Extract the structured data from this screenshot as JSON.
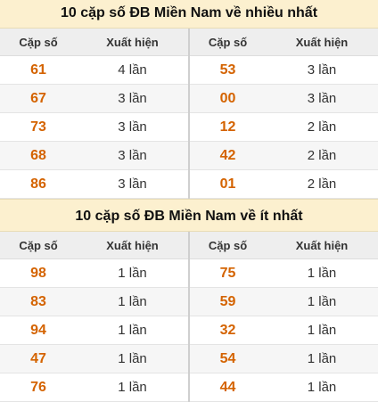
{
  "top": {
    "title": "10 cặp số ĐB Miền Nam về nhiều nhất",
    "headers": [
      "Cặp số",
      "Xuất hiện",
      "Cặp số",
      "Xuất hiện"
    ],
    "rows": [
      {
        "a": "61",
        "a_count": "4 lần",
        "b": "53",
        "b_count": "3 lần"
      },
      {
        "a": "67",
        "a_count": "3 lần",
        "b": "00",
        "b_count": "3 lần"
      },
      {
        "a": "73",
        "a_count": "3 lần",
        "b": "12",
        "b_count": "2 lần"
      },
      {
        "a": "68",
        "a_count": "3 lần",
        "b": "42",
        "b_count": "2 lần"
      },
      {
        "a": "86",
        "a_count": "3 lần",
        "b": "01",
        "b_count": "2 lần"
      }
    ]
  },
  "bottom": {
    "title": "10 cặp số ĐB Miền Nam về ít nhất",
    "headers": [
      "Cặp số",
      "Xuất hiện",
      "Cặp số",
      "Xuất hiện"
    ],
    "rows": [
      {
        "a": "98",
        "a_count": "1 lần",
        "b": "75",
        "b_count": "1 lần"
      },
      {
        "a": "83",
        "a_count": "1 lần",
        "b": "59",
        "b_count": "1 lần"
      },
      {
        "a": "94",
        "a_count": "1 lần",
        "b": "32",
        "b_count": "1 lần"
      },
      {
        "a": "47",
        "a_count": "1 lần",
        "b": "54",
        "b_count": "1 lần"
      },
      {
        "a": "76",
        "a_count": "1 lần",
        "b": "44",
        "b_count": "1 lần"
      }
    ]
  },
  "colors": {
    "title_background": "#fcf0cf",
    "number_accent": "#d46300",
    "header_background": "#eeeeee"
  }
}
